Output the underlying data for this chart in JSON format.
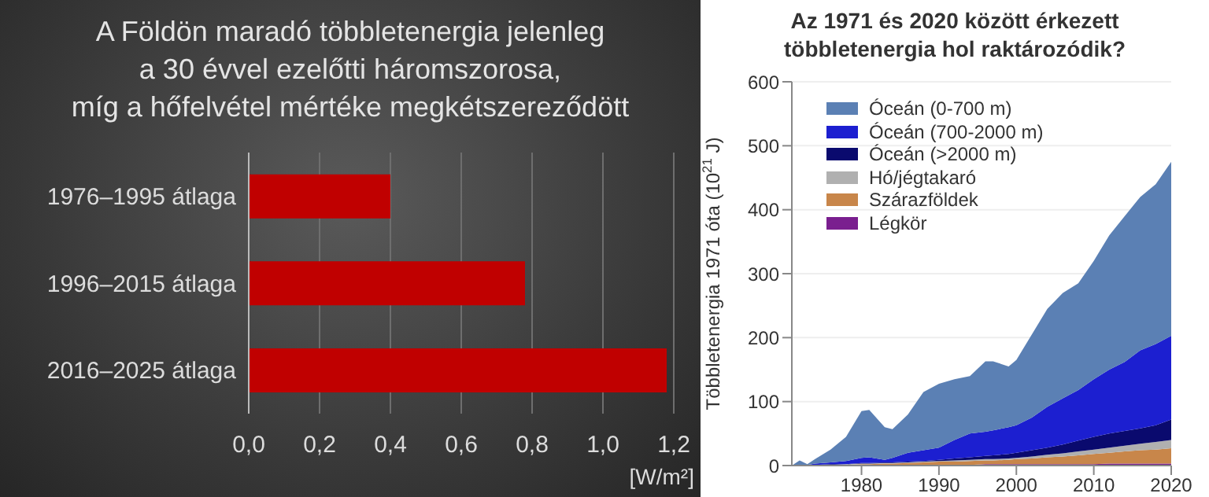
{
  "chart_data": [
    {
      "type": "bar",
      "orientation": "horizontal",
      "title": "A Földön maradó többletenergia jelenleg\na 30 évvel ezelőtti háromszorosa,\nmíg a hőfelvétel mértéke megkétszereződött",
      "xlabel": "[W/m²]",
      "categories": [
        "1976–1995 átlaga",
        "1996–2015 átlaga",
        "2016–2025 átlaga"
      ],
      "values": [
        0.4,
        0.78,
        1.18
      ],
      "color": "#c00000",
      "xlim": [
        0,
        1.2
      ],
      "xticks": [
        {
          "value": 0,
          "label": "0,0"
        },
        {
          "value": 0.2,
          "label": "0,2"
        },
        {
          "value": 0.4,
          "label": "0,4"
        },
        {
          "value": 0.6,
          "label": "0,6"
        },
        {
          "value": 0.8,
          "label": "0,8"
        },
        {
          "value": 1,
          "label": "1,0"
        },
        {
          "value": 1.2,
          "label": "1,2"
        }
      ],
      "grid": "x"
    },
    {
      "type": "area",
      "stacked": true,
      "title": "Az 1971 és 2020 között érkezett\ntöbbletenergia hol raktározódik?",
      "ylabel": "Többletenergia 1971 óta (10$^{21}$ J)",
      "x": [
        1971,
        1972,
        1973,
        1974,
        1976,
        1978,
        1980,
        1981,
        1983,
        1984,
        1986,
        1988,
        1990,
        1992,
        1994,
        1996,
        1997,
        1999,
        2000,
        2002,
        2004,
        2006,
        2008,
        2010,
        2012,
        2014,
        2016,
        2018,
        2020
      ],
      "xlim": [
        1971,
        2020
      ],
      "xticks": [
        1980,
        1990,
        2000,
        2010,
        2020
      ],
      "ylim": [
        0,
        600
      ],
      "yticks": [
        0,
        100,
        200,
        300,
        400,
        500,
        600
      ],
      "grid": "y",
      "legend": "top left",
      "series": [
        {
          "name": "Légkör",
          "color": "#7a1f8f",
          "values": [
            0,
            0,
            0,
            0,
            0,
            0,
            1,
            1,
            1,
            1,
            1,
            1,
            1,
            1,
            1,
            2,
            2,
            2,
            2,
            2,
            2,
            2,
            2,
            2,
            3,
            3,
            3,
            3,
            3
          ]
        },
        {
          "name": "Szárazföldek",
          "color": "#c8864a",
          "values": [
            0,
            0,
            0,
            1,
            1,
            1,
            1,
            1,
            2,
            2,
            3,
            4,
            5,
            5,
            6,
            6,
            6,
            7,
            8,
            9,
            11,
            12,
            14,
            16,
            17,
            19,
            21,
            22,
            24
          ]
        },
        {
          "name": "Hó/jégtakaró",
          "color": "#b0b0b0",
          "values": [
            0,
            0,
            0,
            0,
            0,
            1,
            1,
            1,
            1,
            1,
            1,
            1,
            1,
            2,
            2,
            2,
            2,
            2,
            2,
            3,
            4,
            5,
            6,
            7,
            8,
            9,
            10,
            12,
            13
          ]
        },
        {
          "name": "Óceán (>2000 m)",
          "color": "#0a0a6e",
          "values": [
            0,
            0,
            0,
            0,
            1,
            0,
            1,
            1,
            1,
            1,
            1,
            1,
            2,
            3,
            4,
            5,
            6,
            7,
            8,
            10,
            11,
            14,
            17,
            20,
            22,
            23,
            24,
            26,
            32
          ]
        },
        {
          "name": "Óceán (700-2000 m)",
          "color": "#1c1fd0",
          "values": [
            0,
            1,
            1,
            2,
            3,
            5,
            8,
            9,
            4,
            7,
            14,
            17,
            19,
            29,
            37,
            38,
            39,
            42,
            43,
            51,
            64,
            72,
            79,
            90,
            100,
            108,
            122,
            127,
            131
          ]
        },
        {
          "name": "Óceán (0-700 m)",
          "color": "#5b80b4",
          "values": [
            0,
            7,
            1,
            7,
            20,
            38,
            73,
            74,
            51,
            45,
            60,
            91,
            100,
            95,
            90,
            110,
            108,
            95,
            102,
            130,
            153,
            165,
            167,
            185,
            210,
            228,
            240,
            250,
            272
          ]
        }
      ]
    }
  ]
}
